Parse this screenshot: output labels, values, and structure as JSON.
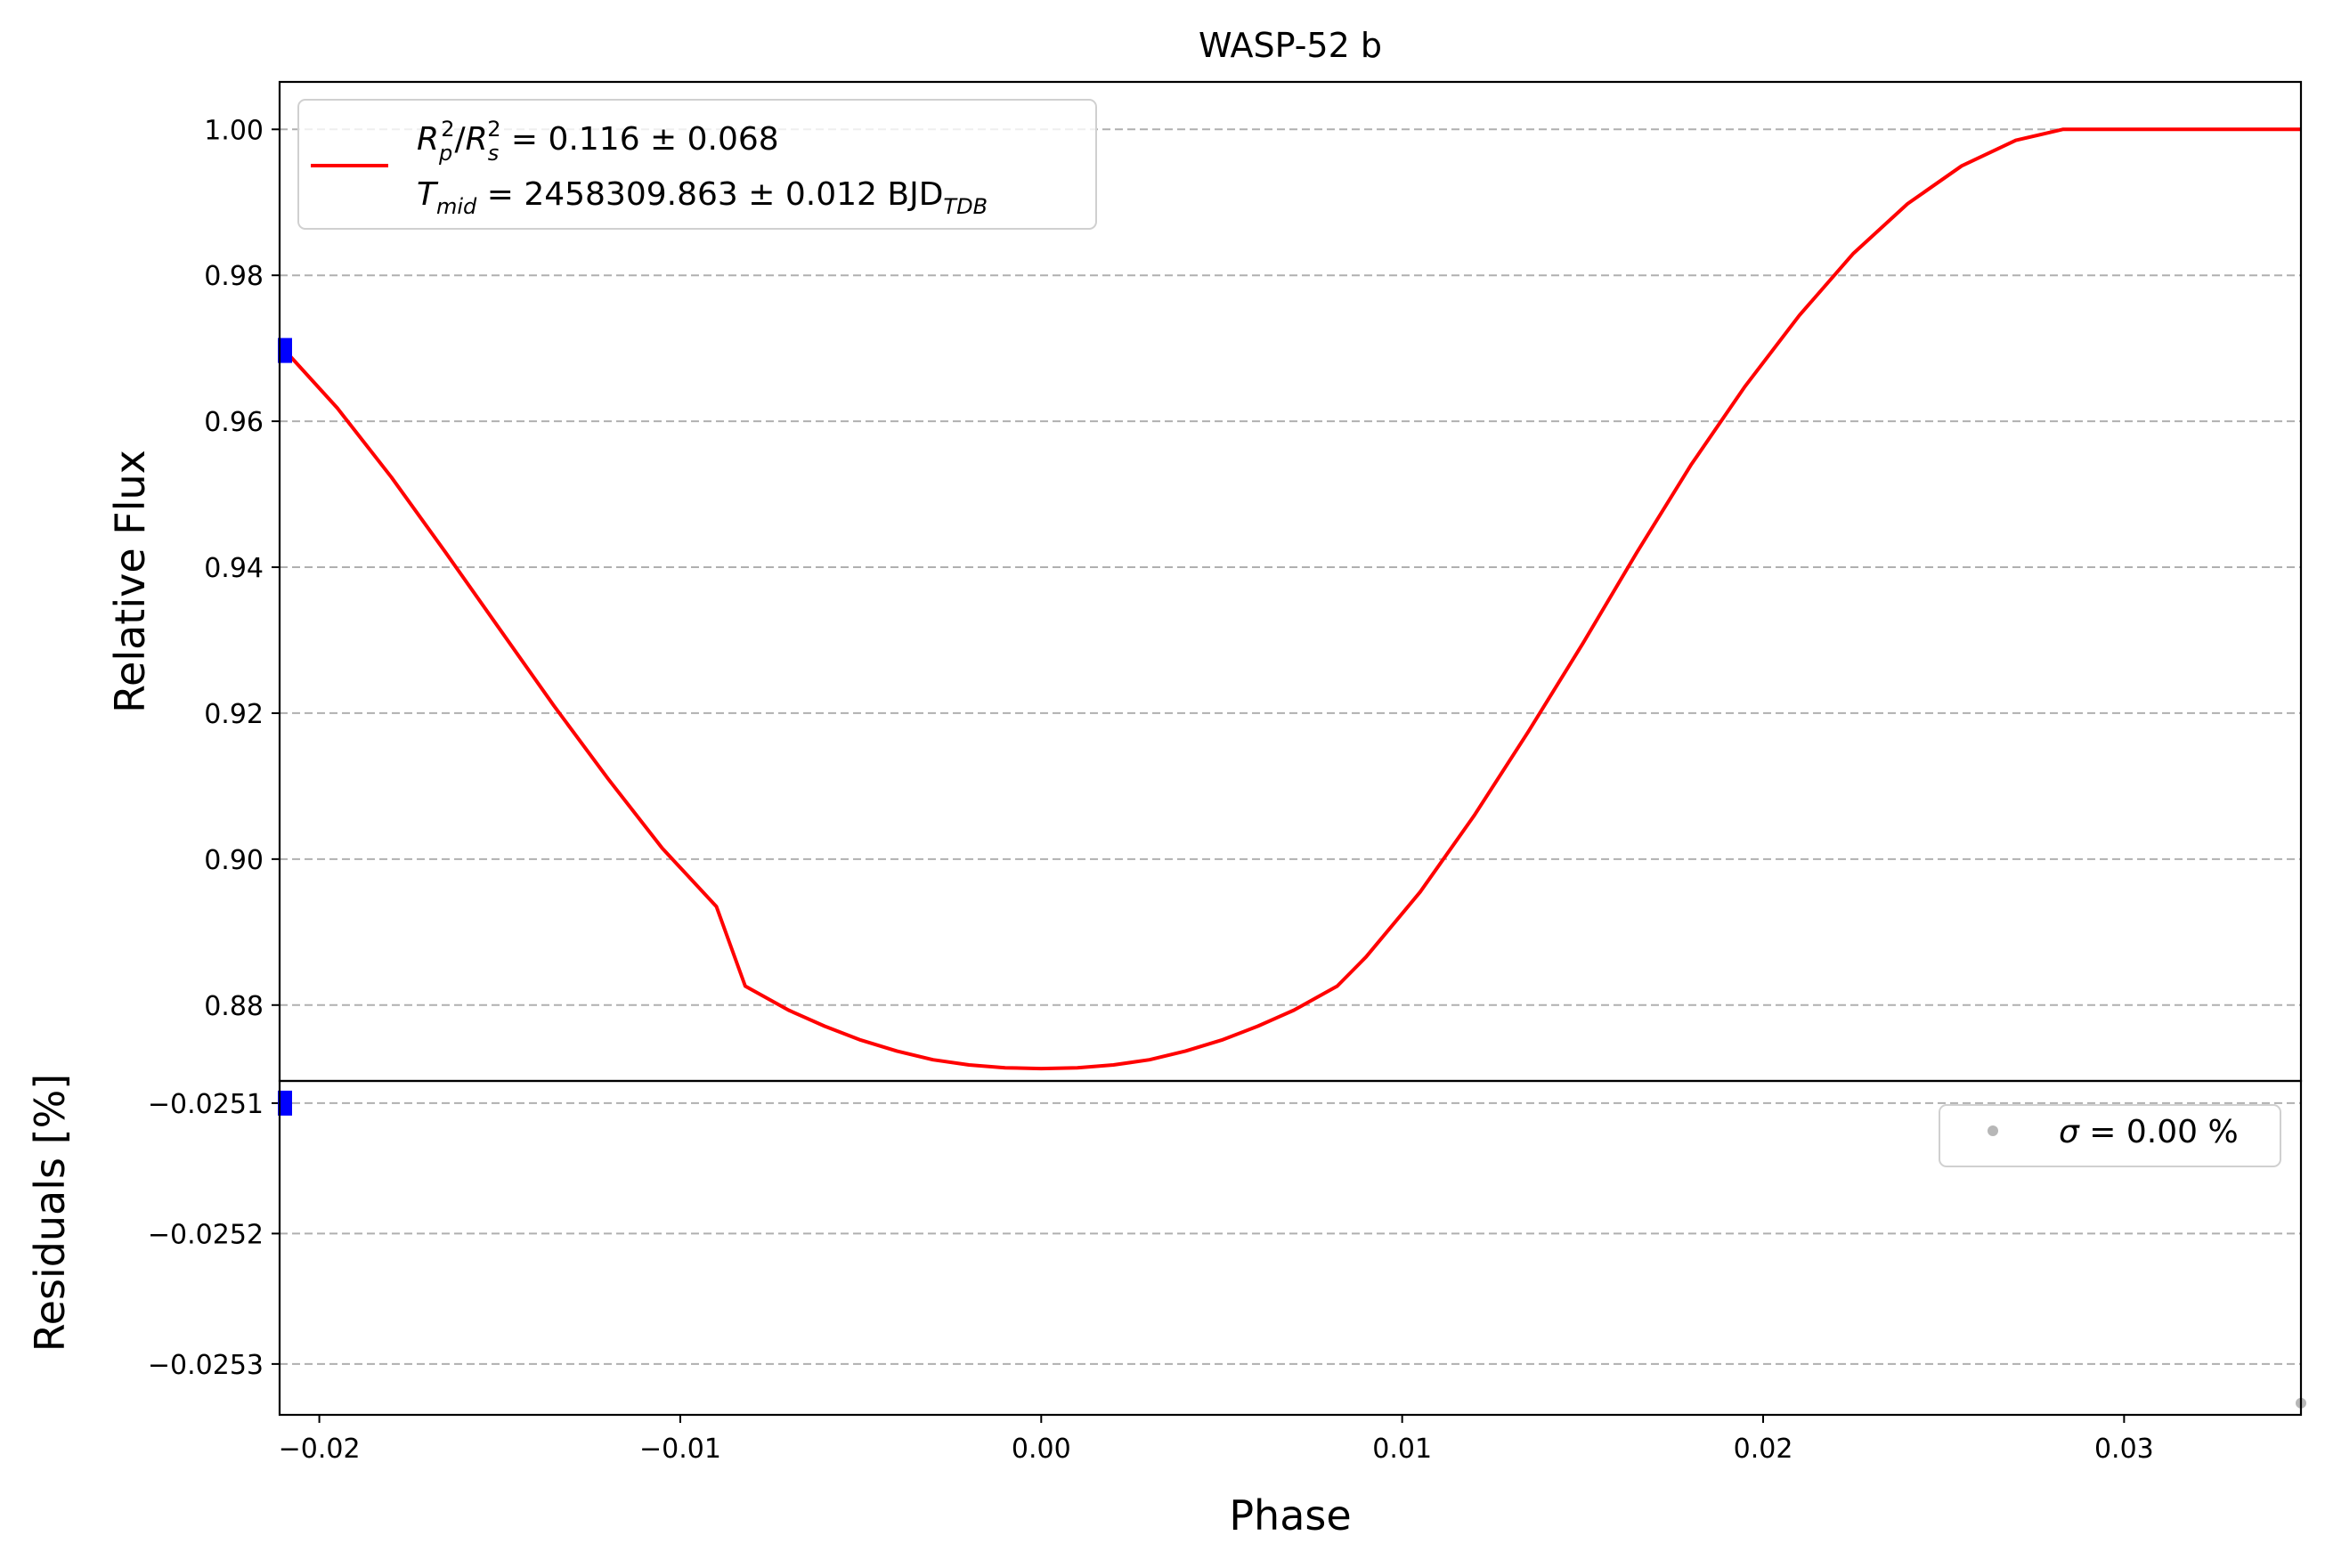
{
  "chart_data": [
    {
      "type": "line",
      "title": "WASP-52 b",
      "ylabel": "Relative Flux",
      "xlim": [
        -0.0211,
        0.0349
      ],
      "ylim": [
        0.8696,
        1.0065
      ],
      "grid": "y-dashed",
      "legend_placement": "top-left",
      "legend": {
        "line1_r": "R",
        "line1_p": "p",
        "line1_s": "s",
        "line1_sq": "2",
        "line1_slash": "/",
        "line1_value": " = 0.116 ± 0.068",
        "line2_T": "T",
        "line2_sub": "mid",
        "line2_value": " = 2458309.863 ± 0.012 BJD",
        "line2_tdb": "TDB"
      },
      "yticks": [
        {
          "v": 0.88,
          "label": "0.88"
        },
        {
          "v": 0.9,
          "label": "0.90"
        },
        {
          "v": 0.92,
          "label": "0.92"
        },
        {
          "v": 0.94,
          "label": "0.94"
        },
        {
          "v": 0.96,
          "label": "0.96"
        },
        {
          "v": 0.98,
          "label": "0.98"
        },
        {
          "v": 1.0,
          "label": "1.00"
        }
      ],
      "series": [
        {
          "kind": "model",
          "color": "#ff0000",
          "x": [
            -0.0211,
            -0.0195,
            -0.018,
            -0.0165,
            -0.015,
            -0.0135,
            -0.012,
            -0.0105,
            -0.009,
            -0.0082,
            -0.007,
            -0.006,
            -0.005,
            -0.004,
            -0.003,
            -0.002,
            -0.001,
            0.0,
            0.001,
            0.002,
            0.003,
            0.004,
            0.005,
            0.006,
            0.007,
            0.0082,
            0.009,
            0.0105,
            0.012,
            0.0135,
            0.015,
            0.0165,
            0.018,
            0.0195,
            0.021,
            0.0225,
            0.024,
            0.0255,
            0.027,
            0.0283,
            0.03,
            0.0349
          ],
          "y": [
            0.9705,
            0.9618,
            0.9523,
            0.942,
            0.9315,
            0.921,
            0.911,
            0.9015,
            0.8935,
            0.8826,
            0.8793,
            0.8771,
            0.8752,
            0.8737,
            0.8725,
            0.8718,
            0.8714,
            0.8713,
            0.8714,
            0.8718,
            0.8725,
            0.8737,
            0.8752,
            0.8771,
            0.8793,
            0.8826,
            0.8866,
            0.8955,
            0.906,
            0.9175,
            0.9295,
            0.942,
            0.954,
            0.9648,
            0.9745,
            0.983,
            0.9898,
            0.995,
            0.9985,
            1.0,
            1.0,
            1.0
          ]
        },
        {
          "kind": "data",
          "color": "#0000ff",
          "x": [
            -0.0211
          ],
          "y": [
            0.9697
          ]
        }
      ]
    },
    {
      "type": "scatter",
      "ylabel": "Residuals [%]",
      "xlabel": "Phase",
      "xlim": [
        -0.0211,
        0.0349
      ],
      "ylim": [
        -0.025339,
        -0.025083
      ],
      "grid": "y-dashed",
      "legend_placement": "top-right",
      "legend": {
        "sigma": "σ",
        "text": " = 0.00 %"
      },
      "yticks": [
        {
          "v": -0.0251,
          "label": "−0.0251"
        },
        {
          "v": -0.0252,
          "label": "−0.0252"
        },
        {
          "v": -0.0253,
          "label": "−0.0253"
        }
      ],
      "xticks": [
        {
          "v": -0.02,
          "label": "−0.02"
        },
        {
          "v": -0.01,
          "label": "−0.01"
        },
        {
          "v": 0.0,
          "label": "0.00"
        },
        {
          "v": 0.01,
          "label": "0.01"
        },
        {
          "v": 0.02,
          "label": "0.02"
        },
        {
          "v": 0.03,
          "label": "0.03"
        }
      ],
      "series": [
        {
          "kind": "data",
          "color": "#0000ff",
          "x": [
            -0.0211
          ],
          "y": [
            -0.0251
          ]
        },
        {
          "kind": "residual",
          "color": "#999999",
          "x": [
            0.0349
          ],
          "y": [
            -0.02533
          ]
        }
      ]
    }
  ]
}
